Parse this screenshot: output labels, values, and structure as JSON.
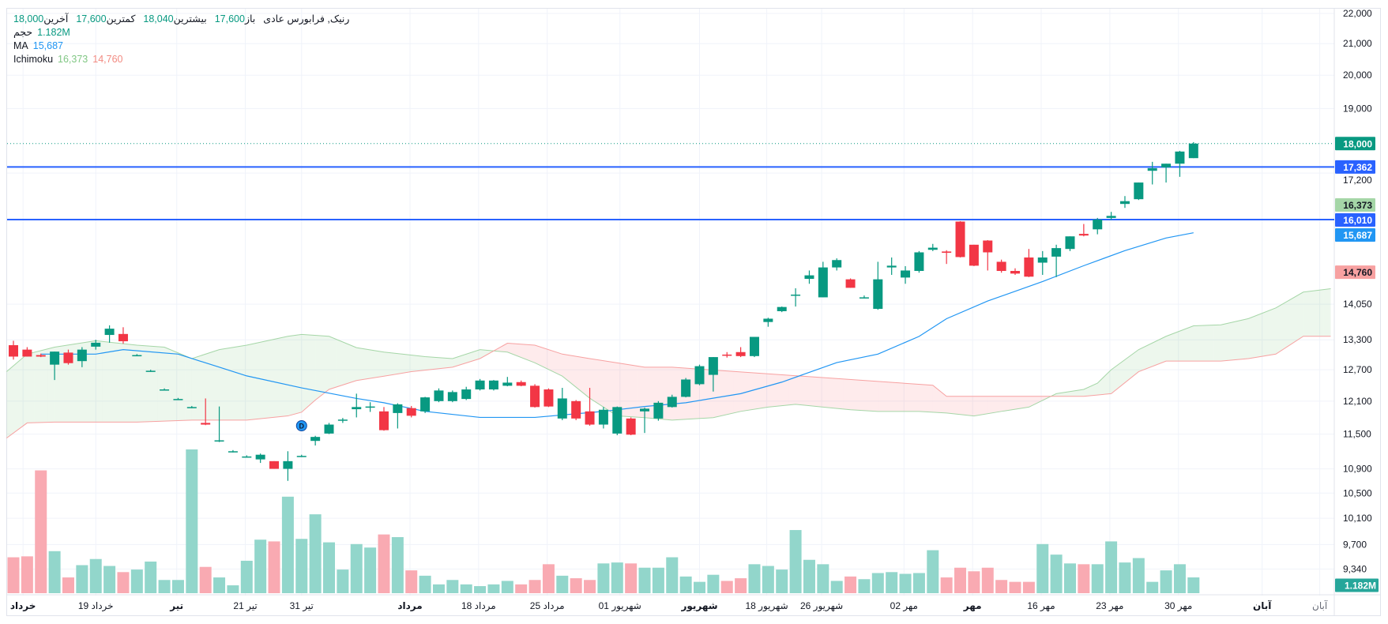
{
  "legend": {
    "symbol": "رنیک, فرابورس عادی",
    "open_label": "باز",
    "open": "17,600",
    "high_label": "بیشترین",
    "high": "18,040",
    "low_label": "کمترین",
    "low": "17,600",
    "last_label": "آخرین",
    "last": "18,000",
    "volume_label": "حجم",
    "volume": "1.182M",
    "ma_label": "MA",
    "ma": "15,687",
    "ichimoku_label": "Ichimoku",
    "ichimoku_a": "16,373",
    "ichimoku_b": "14,760"
  },
  "colors": {
    "up": "#089981",
    "down": "#f23645",
    "vol_up": "#92d6cb",
    "vol_down": "#f9aab2",
    "ma": "#2196f3",
    "span_a": "#a5d6a7",
    "span_b": "#f7a1a1",
    "hline": "#2962ff"
  },
  "chart_data": {
    "type": "candlestick",
    "y_scale": "log",
    "ylim": [
      9200,
      22000
    ],
    "y_ticks": [
      "22,000",
      "21,000",
      "20,000",
      "19,000",
      "17,200",
      "14,050",
      "13,300",
      "12,700",
      "12,100",
      "11,500",
      "10,900",
      "10,500",
      "10,100",
      "9,700",
      "9,340"
    ],
    "y_tick_values": [
      22000,
      21000,
      20000,
      19000,
      17200,
      14050,
      13300,
      12700,
      12100,
      11500,
      10900,
      10500,
      10100,
      9700,
      9340
    ],
    "x_labels": [
      {
        "bar": 0.7,
        "text": "خرداد",
        "bold": true
      },
      {
        "bar": 6,
        "text": "19 خرداد"
      },
      {
        "bar": 11.9,
        "text": "تیر",
        "bold": true
      },
      {
        "bar": 16.9,
        "text": "21 تیر"
      },
      {
        "bar": 21,
        "text": "31 تیر"
      },
      {
        "bar": 28.9,
        "text": "مرداد",
        "bold": true
      },
      {
        "bar": 33.9,
        "text": "18 مرداد"
      },
      {
        "bar": 38.9,
        "text": "25 مرداد"
      },
      {
        "bar": 44.2,
        "text": "01 شهریور"
      },
      {
        "bar": 50,
        "text": "شهریور",
        "bold": true
      },
      {
        "bar": 54.9,
        "text": "18 شهریور"
      },
      {
        "bar": 58.9,
        "text": "26 شهریور"
      },
      {
        "bar": 64.9,
        "text": "02 مهر"
      },
      {
        "bar": 69.9,
        "text": "مهر",
        "bold": true
      },
      {
        "bar": 74.9,
        "text": "16 مهر"
      },
      {
        "bar": 79.9,
        "text": "23 مهر"
      },
      {
        "bar": 84.9,
        "text": "30 مهر"
      },
      {
        "bar": 91,
        "text": "آبان",
        "bold": true
      },
      {
        "bar": 95.2,
        "text": "آبان",
        "dim": true
      }
    ],
    "candles": [
      [
        13190,
        13280,
        12900,
        12960
      ],
      [
        13100,
        13150,
        12960,
        12960
      ],
      [
        12990,
        13020,
        12950,
        12960
      ],
      [
        12800,
        13060,
        12500,
        13060
      ],
      [
        13040,
        13100,
        12800,
        12830
      ],
      [
        12870,
        13150,
        12750,
        13100
      ],
      [
        13160,
        13300,
        13100,
        13240
      ],
      [
        13400,
        13600,
        13240,
        13530
      ],
      [
        13420,
        13560,
        13220,
        13270
      ],
      [
        12990,
        13010,
        12970,
        12990
      ],
      [
        12680,
        12700,
        12660,
        12680
      ],
      [
        12320,
        12340,
        12300,
        12320
      ],
      [
        12140,
        12160,
        12120,
        12140
      ],
      [
        11990,
        12010,
        11970,
        11990
      ],
      [
        11700,
        12150,
        11660,
        11670
      ],
      [
        11390,
        12000,
        11360,
        11390
      ],
      [
        11200,
        11220,
        11180,
        11200
      ],
      [
        11110,
        11130,
        11090,
        11110
      ],
      [
        11060,
        11160,
        11000,
        11140
      ],
      [
        11030,
        11030,
        10900,
        10900
      ],
      [
        10900,
        11200,
        10700,
        11030
      ],
      [
        11120,
        11140,
        11100,
        11120
      ],
      [
        11380,
        11470,
        11300,
        11450
      ],
      [
        11510,
        11700,
        11500,
        11670
      ],
      [
        11740,
        11790,
        11700,
        11760
      ],
      [
        11950,
        12240,
        11800,
        11990
      ],
      [
        11990,
        12080,
        11900,
        12000
      ],
      [
        11910,
        11990,
        11560,
        11570
      ],
      [
        11880,
        12060,
        11600,
        12040
      ],
      [
        11970,
        12010,
        11800,
        11830
      ],
      [
        11910,
        12180,
        11880,
        12170
      ],
      [
        12100,
        12340,
        12080,
        12300
      ],
      [
        12100,
        12300,
        12080,
        12270
      ],
      [
        12140,
        12370,
        12120,
        12320
      ],
      [
        12320,
        12520,
        12300,
        12490
      ],
      [
        12320,
        12500,
        12300,
        12490
      ],
      [
        12390,
        12560,
        12380,
        12450
      ],
      [
        12460,
        12490,
        12380,
        12390
      ],
      [
        12390,
        12420,
        11980,
        11990
      ],
      [
        12320,
        12340,
        11990,
        12000
      ],
      [
        11780,
        12350,
        11750,
        12150
      ],
      [
        12100,
        12120,
        11750,
        11780
      ],
      [
        11910,
        12350,
        11650,
        11670
      ],
      [
        11670,
        11990,
        11600,
        11940
      ],
      [
        11510,
        12000,
        11480,
        11990
      ],
      [
        11780,
        11800,
        11480,
        11490
      ],
      [
        11910,
        11980,
        11520,
        11960
      ],
      [
        11780,
        12100,
        11740,
        12070
      ],
      [
        11990,
        12220,
        11980,
        12180
      ],
      [
        12180,
        12540,
        12170,
        12510
      ],
      [
        12420,
        12800,
        12400,
        12770
      ],
      [
        12600,
        12950,
        12280,
        12950
      ],
      [
        13000,
        13050,
        12940,
        12980
      ],
      [
        13050,
        13150,
        12950,
        12970
      ],
      [
        12970,
        13360,
        12950,
        13360
      ],
      [
        13670,
        13760,
        13570,
        13740
      ],
      [
        13900,
        14000,
        13880,
        13990
      ],
      [
        14250,
        14400,
        14000,
        14260
      ],
      [
        14610,
        14800,
        14500,
        14690
      ],
      [
        14200,
        15000,
        14200,
        14870
      ],
      [
        14870,
        15080,
        14800,
        15040
      ],
      [
        14600,
        14620,
        14410,
        14410
      ],
      [
        14200,
        14240,
        14180,
        14200
      ],
      [
        13950,
        15000,
        13930,
        14600
      ],
      [
        14870,
        15100,
        14700,
        14910
      ],
      [
        14640,
        14900,
        14500,
        14800
      ],
      [
        14790,
        15250,
        14750,
        15220
      ],
      [
        15280,
        15420,
        15250,
        15330
      ],
      [
        15240,
        15270,
        14950,
        15210
      ],
      [
        15960,
        15970,
        15100,
        15110
      ],
      [
        15400,
        15400,
        14900,
        14910
      ],
      [
        15500,
        15510,
        14800,
        15220
      ],
      [
        15000,
        15050,
        14750,
        14790
      ],
      [
        14790,
        14850,
        14700,
        14730
      ],
      [
        15100,
        15300,
        14650,
        14660
      ],
      [
        14980,
        15250,
        14700,
        15100
      ],
      [
        15120,
        15400,
        14650,
        15320
      ],
      [
        15300,
        15600,
        15250,
        15600
      ],
      [
        15660,
        15900,
        15600,
        15620
      ],
      [
        15770,
        16050,
        15650,
        16010
      ],
      [
        16050,
        16200,
        16000,
        16100
      ],
      [
        16400,
        16600,
        16300,
        16470
      ],
      [
        16520,
        16950,
        16500,
        16950
      ],
      [
        17260,
        17500,
        16900,
        17330
      ],
      [
        17350,
        17450,
        16950,
        17450
      ],
      [
        17450,
        17800,
        17100,
        17780
      ],
      [
        17600,
        18040,
        17600,
        18000
      ]
    ],
    "volume_millions": [
      2.69,
      2.76,
      9.2,
      3.15,
      1.18,
      2.1,
      2.56,
      2.04,
      1.58,
      1.77,
      2.37,
      0.99,
      0.99,
      10.77,
      1.97,
      1.18,
      0.59,
      2.43,
      4.01,
      3.88,
      7.23,
      4.07,
      5.91,
      3.81,
      1.77,
      3.68,
      3.42,
      4.4,
      4.2,
      1.71,
      1.31,
      0.66,
      0.99,
      0.66,
      0.53,
      0.66,
      0.92,
      0.66,
      0.99,
      2.17,
      1.31,
      1.12,
      0.99,
      2.23,
      2.3,
      2.23,
      1.91,
      1.91,
      2.69,
      1.25,
      0.85,
      1.38,
      0.92,
      1.12,
      2.17,
      2.04,
      1.77,
      4.73,
      2.5,
      2.17,
      0.92,
      1.25,
      1.05,
      1.51,
      1.58,
      1.45,
      1.51,
      3.22,
      1.18,
      1.91,
      1.64,
      1.91,
      0.99,
      0.85,
      0.85,
      3.68,
      2.89,
      2.23,
      2.17,
      2.17,
      3.88,
      2.3,
      2.63,
      0.85,
      1.71,
      2.17,
      1.182
    ],
    "ma": [
      [
        2,
        13010
      ],
      [
        6,
        13010
      ],
      [
        8,
        13100
      ],
      [
        12,
        13010
      ],
      [
        15,
        12750
      ],
      [
        17,
        12580
      ],
      [
        21,
        12350
      ],
      [
        25,
        12150
      ],
      [
        27,
        12070
      ],
      [
        30,
        11910
      ],
      [
        34,
        11800
      ],
      [
        38,
        11800
      ],
      [
        43,
        11910
      ],
      [
        46,
        12000
      ],
      [
        49,
        12070
      ],
      [
        53,
        12240
      ],
      [
        56,
        12460
      ],
      [
        60,
        12840
      ],
      [
        63,
        13010
      ],
      [
        66,
        13370
      ],
      [
        68,
        13740
      ],
      [
        71,
        14120
      ],
      [
        75,
        14550
      ],
      [
        78,
        14910
      ],
      [
        81,
        15260
      ],
      [
        84,
        15560
      ],
      [
        86,
        15687
      ]
    ],
    "ichimoku_span_a": [
      [
        -0.5,
        12662
      ],
      [
        1,
        13010
      ],
      [
        3,
        13150
      ],
      [
        6,
        13280
      ],
      [
        9,
        13190
      ],
      [
        11,
        13150
      ],
      [
        13,
        12920
      ],
      [
        15,
        13100
      ],
      [
        17,
        13190
      ],
      [
        20,
        13372
      ],
      [
        21,
        13410
      ],
      [
        23,
        13372
      ],
      [
        25,
        13140
      ],
      [
        27,
        13050
      ],
      [
        30,
        12960
      ],
      [
        32,
        12920
      ],
      [
        34,
        13100
      ],
      [
        36,
        13050
      ],
      [
        38,
        12836
      ],
      [
        40,
        12575
      ],
      [
        42,
        12154
      ],
      [
        44,
        11827
      ],
      [
        46,
        11795
      ],
      [
        48,
        11750
      ],
      [
        51,
        11795
      ],
      [
        53,
        11910
      ],
      [
        55,
        11989
      ],
      [
        57,
        12040
      ],
      [
        59,
        11989
      ],
      [
        61,
        11940
      ],
      [
        63,
        11910
      ],
      [
        66,
        11910
      ],
      [
        68,
        11880
      ],
      [
        70,
        11827
      ],
      [
        72,
        11910
      ],
      [
        74,
        11989
      ],
      [
        76,
        12240
      ],
      [
        78,
        12321
      ],
      [
        79,
        12440
      ],
      [
        80,
        12700
      ],
      [
        82,
        13100
      ],
      [
        84,
        13372
      ],
      [
        86,
        13590
      ],
      [
        88,
        13610
      ],
      [
        90,
        13742
      ],
      [
        92,
        13970
      ],
      [
        94,
        14316
      ],
      [
        96,
        14390
      ]
    ],
    "ichimoku_span_b": [
      [
        -0.5,
        11430
      ],
      [
        1,
        11700
      ],
      [
        3,
        11715
      ],
      [
        6,
        11715
      ],
      [
        9,
        11715
      ],
      [
        13,
        11750
      ],
      [
        15,
        11750
      ],
      [
        17,
        11750
      ],
      [
        20,
        11827
      ],
      [
        21,
        11895
      ],
      [
        22,
        12120
      ],
      [
        23,
        12321
      ],
      [
        25,
        12490
      ],
      [
        27,
        12575
      ],
      [
        29,
        12662
      ],
      [
        32,
        12750
      ],
      [
        34,
        12920
      ],
      [
        36,
        13230
      ],
      [
        38,
        13190
      ],
      [
        40,
        13010
      ],
      [
        42,
        12920
      ],
      [
        44,
        12836
      ],
      [
        46,
        12750
      ],
      [
        48,
        12750
      ],
      [
        67,
        12400
      ],
      [
        68,
        12190
      ],
      [
        70,
        12190
      ],
      [
        78,
        12190
      ],
      [
        80,
        12240
      ],
      [
        82,
        12662
      ],
      [
        84,
        12870
      ],
      [
        88,
        12870
      ],
      [
        90,
        12920
      ],
      [
        92,
        13010
      ],
      [
        94,
        13372
      ],
      [
        96,
        13372
      ]
    ],
    "horizontal_lines": [
      17362,
      16010
    ],
    "last_price_line": 18000,
    "markers": [
      {
        "bar": 21,
        "price": 11480,
        "text": "D"
      }
    ],
    "price_labels": [
      {
        "value": 18000,
        "text": "18,000",
        "bg": "#089981",
        "fg": "#ffffff"
      },
      {
        "value": 17362,
        "text": "17,362",
        "bg": "#2962ff",
        "fg": "#ffffff"
      },
      {
        "value": 16373,
        "text": "16,373",
        "bg": "#a5d6a7",
        "fg": "#131722"
      },
      {
        "value": 16010,
        "text": "16,010",
        "bg": "#2962ff",
        "fg": "#ffffff"
      },
      {
        "value": 15687,
        "text": "15,687",
        "bg": "#2196f3",
        "fg": "#ffffff"
      },
      {
        "value": 14760,
        "text": "14,760",
        "bg": "#f7a1a1",
        "fg": "#131722"
      }
    ],
    "volume_label": {
      "text": "1.182M",
      "bg": "#26a69a",
      "fg": "#ffffff"
    }
  }
}
